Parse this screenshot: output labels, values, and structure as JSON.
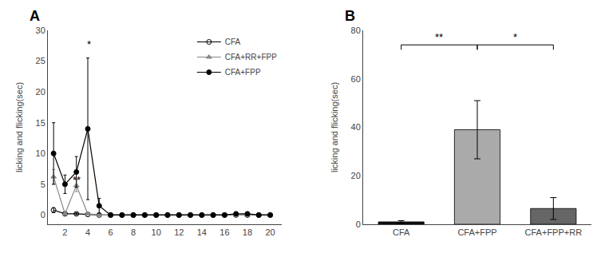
{
  "chart_data": [
    {
      "type": "line",
      "title": "A",
      "ylabel": "licking and flicking(sec)",
      "x": [
        1,
        2,
        3,
        4,
        5,
        6,
        7,
        8,
        9,
        10,
        11,
        12,
        13,
        14,
        15,
        16,
        17,
        18,
        19,
        20
      ],
      "xlim": [
        0.5,
        21
      ],
      "xticks": [
        2,
        4,
        6,
        8,
        10,
        12,
        14,
        16,
        18,
        20
      ],
      "ylim": [
        -1.5,
        30
      ],
      "yticks": [
        0,
        5,
        10,
        15,
        20,
        25,
        30
      ],
      "grid": false,
      "legend": "upper right",
      "series": [
        {
          "name": "CFA",
          "color": "black",
          "marker": "circle-open",
          "values": [
            0.8,
            0.2,
            0.2,
            0.1,
            0.0,
            0.0,
            0.0,
            0.0,
            0.0,
            0.0,
            0.0,
            0.0,
            0.0,
            0.0,
            0.0,
            0.0,
            0.0,
            0.0,
            0.0,
            0.0
          ],
          "errors": [
            0.4,
            0.15,
            0.15,
            0.1,
            0.0,
            0.0,
            0.0,
            0.0,
            0.0,
            0.0,
            0.0,
            0.0,
            0.0,
            0.0,
            0.0,
            0.0,
            0.0,
            0.0,
            0.0,
            0.0
          ]
        },
        {
          "name": "CFA+RR+FPP",
          "color": "#888888",
          "marker": "triangle-up",
          "values": [
            6.2,
            0.2,
            4.8,
            0.2,
            0.0,
            0.0,
            0.0,
            0.0,
            0.0,
            0.0,
            0.0,
            0.0,
            0.0,
            0.0,
            0.0,
            0.0,
            0.0,
            0.0,
            0.0,
            0.0
          ],
          "errors": [
            1.2,
            0.15,
            1.0,
            0.15,
            0.0,
            0.0,
            0.0,
            0.0,
            0.0,
            0.0,
            0.0,
            0.0,
            0.0,
            0.0,
            0.0,
            0.0,
            0.0,
            0.0,
            0.0,
            0.0
          ]
        },
        {
          "name": "CFA+FPP",
          "color": "black",
          "marker": "circle",
          "values": [
            10.0,
            5.0,
            7.0,
            14.0,
            1.5,
            0.0,
            0.0,
            0.0,
            0.0,
            0.0,
            0.0,
            0.0,
            0.0,
            0.0,
            0.0,
            0.0,
            0.2,
            0.2,
            0.0,
            0.0
          ],
          "errors": [
            5.0,
            1.5,
            2.5,
            11.5,
            1.2,
            0.0,
            0.0,
            0.0,
            0.0,
            0.0,
            0.0,
            0.0,
            0.0,
            0.0,
            0.0,
            0.0,
            0.2,
            0.2,
            0.0,
            0.0
          ]
        }
      ],
      "annotations": [
        {
          "x": 4.1,
          "y": 26.5,
          "text": "*"
        },
        {
          "x": 3.05,
          "y": 4.5,
          "text": "**"
        }
      ]
    },
    {
      "type": "bar",
      "title": "B",
      "ylabel": "licking and flicking(sec)",
      "categories": [
        "CFA",
        "CFA+FPP",
        "CFA+FPP+RR"
      ],
      "values": [
        1.0,
        39.0,
        6.5
      ],
      "errors": [
        0.5,
        12.0,
        4.5
      ],
      "colors": [
        "#111111",
        "#aaaaaa",
        "#666666"
      ],
      "ylim": [
        0,
        80
      ],
      "yticks": [
        0,
        20,
        40,
        60,
        80
      ],
      "grid": false,
      "brackets": [
        {
          "from": "CFA",
          "to": "CFA+FPP",
          "y": 74,
          "drop": 2,
          "label": "**"
        },
        {
          "from": "CFA+FPP",
          "to": "CFA+FPP+RR",
          "y": 74,
          "drop": 2,
          "label": "*"
        }
      ]
    }
  ]
}
